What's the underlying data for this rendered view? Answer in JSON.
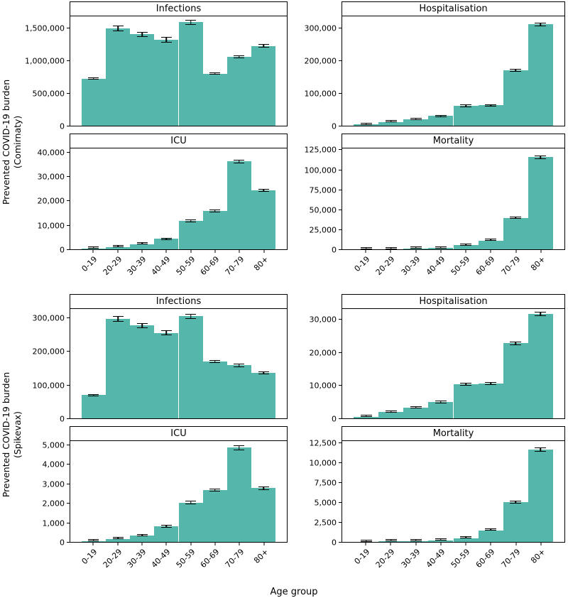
{
  "figure": {
    "x_axis_label": "Age group",
    "bar_color": "#55b7ab",
    "error_bar_color": "#000000",
    "panel_border_color": "#000000",
    "age_groups": [
      "0-19",
      "20-29",
      "30-39",
      "40-49",
      "50-59",
      "60-69",
      "70-79",
      "80+"
    ],
    "groups": [
      {
        "name": "Comirnaty",
        "ylabel_line1": "Prevented COVID-19 burden",
        "ylabel_line2": "(Comirnaty)"
      },
      {
        "name": "Spikevax",
        "ylabel_line1": "Prevented COVID-19 burden",
        "ylabel_line2": "(Spikevax)"
      }
    ]
  },
  "chart_data": [
    {
      "type": "bar",
      "group": "Comirnaty",
      "title": "Infections",
      "categories": [
        "0-19",
        "20-29",
        "30-39",
        "40-49",
        "50-59",
        "60-69",
        "70-79",
        "80+"
      ],
      "values": [
        730000,
        1510000,
        1420000,
        1340000,
        1610000,
        810000,
        1070000,
        1240000
      ],
      "errors": [
        15000,
        45000,
        40000,
        45000,
        40000,
        15000,
        20000,
        25000
      ],
      "ylim": [
        0,
        1700000
      ],
      "yticks": [
        0,
        500000,
        1000000,
        1500000
      ],
      "grid": false,
      "show_x_labels": false
    },
    {
      "type": "bar",
      "group": "Comirnaty",
      "title": "Hospitalisation",
      "categories": [
        "0-19",
        "20-29",
        "30-39",
        "40-49",
        "50-59",
        "60-69",
        "70-79",
        "80+"
      ],
      "values": [
        4000,
        12000,
        20000,
        30000,
        62000,
        63000,
        172000,
        315000
      ],
      "errors": [
        800,
        1500,
        2000,
        2500,
        3500,
        3500,
        5000,
        6000
      ],
      "ylim": [
        0,
        340000
      ],
      "yticks": [
        0,
        100000,
        200000,
        300000
      ],
      "grid": false,
      "show_x_labels": false
    },
    {
      "type": "bar",
      "group": "Comirnaty",
      "title": "ICU",
      "categories": [
        "0-19",
        "20-29",
        "30-39",
        "40-49",
        "50-59",
        "60-69",
        "70-79",
        "80+"
      ],
      "values": [
        300,
        900,
        2200,
        4300,
        11800,
        16000,
        36600,
        24500
      ],
      "errors": [
        80,
        150,
        250,
        350,
        500,
        500,
        800,
        600
      ],
      "ylim": [
        0,
        42000
      ],
      "yticks": [
        0,
        10000,
        20000,
        30000,
        40000
      ],
      "grid": false,
      "show_x_labels": true
    },
    {
      "type": "bar",
      "group": "Comirnaty",
      "title": "Mortality",
      "categories": [
        "0-19",
        "20-29",
        "30-39",
        "40-49",
        "50-59",
        "60-69",
        "70-79",
        "80+"
      ],
      "values": [
        150,
        400,
        700,
        1500,
        5000,
        11000,
        40000,
        117000
      ],
      "errors": [
        40,
        70,
        110,
        180,
        350,
        500,
        1000,
        2200
      ],
      "ylim": [
        0,
        128000
      ],
      "yticks": [
        0,
        25000,
        50000,
        75000,
        100000,
        125000
      ],
      "grid": false,
      "show_x_labels": true
    },
    {
      "type": "bar",
      "group": "Spikevax",
      "title": "Infections",
      "categories": [
        "0-19",
        "20-29",
        "30-39",
        "40-49",
        "50-59",
        "60-69",
        "70-79",
        "80+"
      ],
      "values": [
        70000,
        300000,
        280000,
        258000,
        308000,
        172000,
        160000,
        137000
      ],
      "errors": [
        3000,
        9000,
        8000,
        8000,
        8000,
        4000,
        5000,
        4000
      ],
      "ylim": [
        0,
        330000
      ],
      "yticks": [
        0,
        100000,
        200000,
        300000
      ],
      "grid": false,
      "show_x_labels": false
    },
    {
      "type": "bar",
      "group": "Spikevax",
      "title": "Hospitalisation",
      "categories": [
        "0-19",
        "20-29",
        "30-39",
        "40-49",
        "50-59",
        "60-69",
        "70-79",
        "80+"
      ],
      "values": [
        500,
        2000,
        3200,
        5000,
        10400,
        10700,
        23000,
        32000
      ],
      "errors": [
        80,
        200,
        250,
        350,
        400,
        400,
        500,
        600
      ],
      "ylim": [
        0,
        33500
      ],
      "yticks": [
        0,
        10000,
        20000,
        30000
      ],
      "grid": false,
      "show_x_labels": false
    },
    {
      "type": "bar",
      "group": "Spikevax",
      "title": "ICU",
      "categories": [
        "0-19",
        "20-29",
        "30-39",
        "40-49",
        "50-59",
        "60-69",
        "70-79",
        "80+"
      ],
      "values": [
        50,
        160,
        350,
        800,
        2050,
        2700,
        4900,
        2800
      ],
      "errors": [
        10,
        25,
        45,
        70,
        90,
        90,
        120,
        90
      ],
      "ylim": [
        0,
        5250
      ],
      "yticks": [
        0,
        1000,
        2000,
        3000,
        4000,
        5000
      ],
      "grid": false,
      "show_x_labels": true
    },
    {
      "type": "bar",
      "group": "Spikevax",
      "title": "Mortality",
      "categories": [
        "0-19",
        "20-29",
        "30-39",
        "40-49",
        "50-59",
        "60-69",
        "70-79",
        "80+"
      ],
      "values": [
        20,
        60,
        100,
        200,
        500,
        1500,
        5100,
        11800
      ],
      "errors": [
        6,
        12,
        18,
        30,
        55,
        90,
        160,
        250
      ],
      "ylim": [
        0,
        12900
      ],
      "yticks": [
        0,
        2500,
        5000,
        7500,
        10000,
        12500
      ],
      "grid": false,
      "show_x_labels": true
    }
  ]
}
